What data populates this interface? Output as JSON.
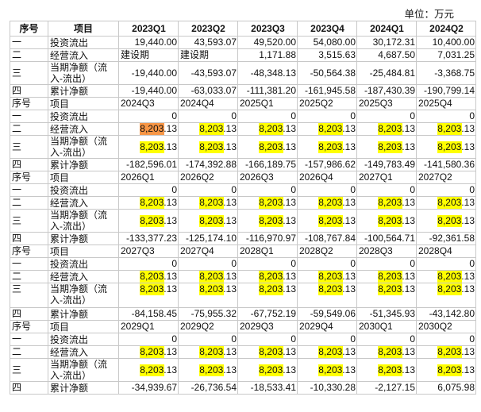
{
  "unit_label": "单位：万元",
  "header": {
    "no": "序号",
    "item": "项目"
  },
  "highlight_color": "#ffff00",
  "highlight_accent_color": "#f79646",
  "row_labels": [
    {
      "no": "一",
      "item": "投资流出"
    },
    {
      "no": "二",
      "item": "经营流入"
    },
    {
      "no": "三",
      "item": "当期净额（流入-流出）"
    },
    {
      "no": "四",
      "item": "累计净额"
    }
  ],
  "blocks": [
    {
      "periods": [
        "2023Q1",
        "2023Q2",
        "2023Q3",
        "2023Q4",
        "2024Q1",
        "2024Q2"
      ],
      "rows": [
        [
          "19,440.00",
          "43,593.07",
          "49,520.00",
          "54,080.00",
          "30,172.31",
          "10,400.00"
        ],
        [
          "建设期",
          "建设期",
          "1,171.88",
          "3,515.63",
          "4,687.50",
          "7,031.25"
        ],
        [
          "-19,440.00",
          "-43,593.07",
          "-48,348.13",
          "-50,564.38",
          "-25,484.81",
          "-3,368.75"
        ],
        [
          "-19,440.00",
          "-63,033.07",
          "-111,381.20",
          "-161,945.58",
          "-187,430.39",
          "-190,799.14"
        ]
      ]
    },
    {
      "periods": [
        "2024Q3",
        "2024Q4",
        "2025Q1",
        "2025Q2",
        "2025Q3",
        "2025Q4"
      ],
      "rows": [
        [
          "0",
          "0",
          "0",
          "0",
          "0",
          "0"
        ],
        [
          "8,203.13",
          "8,203.13",
          "8,203.13",
          "8,203.13",
          "8,203.13",
          "8,203.13"
        ],
        [
          "8,203.13",
          "8,203.13",
          "8,203.13",
          "8,203.13",
          "8,203.13",
          "8,203.13"
        ],
        [
          "-182,596.01",
          "-174,392.88",
          "-166,189.75",
          "-157,986.62",
          "-149,783.49",
          "-141,580.36"
        ]
      ]
    },
    {
      "periods": [
        "2026Q1",
        "2026Q2",
        "2026Q3",
        "2026Q4",
        "2027Q1",
        "2027Q2"
      ],
      "rows": [
        [
          "0",
          "0",
          "0",
          "0",
          "0",
          "0"
        ],
        [
          "8,203.13",
          "8,203.13",
          "8,203.13",
          "8,203.13",
          "8,203.13",
          "8,203.13"
        ],
        [
          "8,203.13",
          "8,203.13",
          "8,203.13",
          "8,203.13",
          "8,203.13",
          "8,203.13"
        ],
        [
          "-133,377.23",
          "-125,174.10",
          "-116,970.97",
          "-108,767.84",
          "-100,564.71",
          "-92,361.58"
        ]
      ]
    },
    {
      "periods": [
        "2027Q3",
        "2027Q4",
        "2028Q1",
        "2028Q2",
        "2028Q3",
        "2028Q4"
      ],
      "rows": [
        [
          "0",
          "0",
          "0",
          "0",
          "0",
          "0"
        ],
        [
          "8,203.13",
          "8,203.13",
          "8,203.13",
          "8,203.13",
          "8,203.13",
          "8,203.13"
        ],
        [
          "8,203.13",
          "8,203.13",
          "8,203.13",
          "8,203.13",
          "8,203.13",
          "8,203.13"
        ],
        [
          "-84,158.45",
          "-75,955.32",
          "-67,752.19",
          "-59,549.06",
          "-51,345.93",
          "-43,142.80"
        ]
      ]
    },
    {
      "periods": [
        "2029Q1",
        "2029Q2",
        "2029Q3",
        "2029Q4",
        "2030Q1",
        "2030Q2"
      ],
      "rows": [
        [
          "0",
          "0",
          "0",
          "0",
          "0",
          "0"
        ],
        [
          "8,203.13",
          "8,203.13",
          "8,203.13",
          "8,203.13",
          "8,203.13",
          "8,203.13"
        ],
        [
          "8,203.13",
          "8,203.13",
          "8,203.13",
          "8,203.13",
          "8,203.13",
          "8,203.13"
        ],
        [
          "-34,939.67",
          "-26,736.54",
          "-18,533.41",
          "-10,330.28",
          "-2,127.15",
          "6,075.98"
        ]
      ]
    }
  ]
}
